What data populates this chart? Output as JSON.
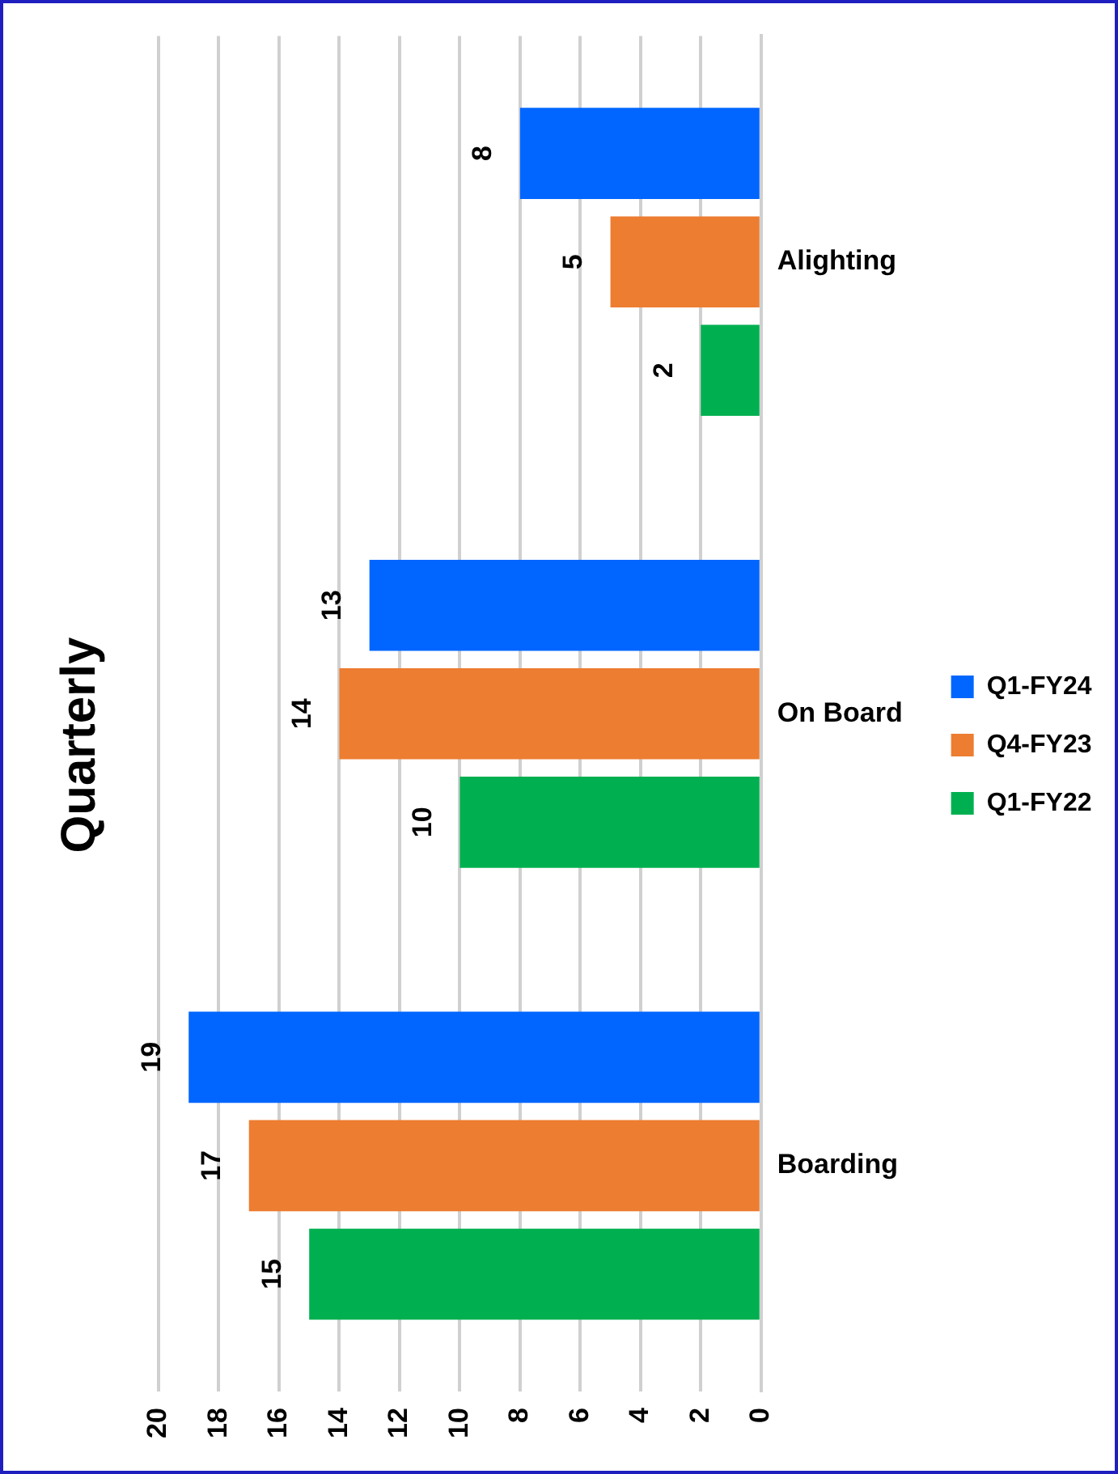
{
  "chart_data": {
    "type": "bar",
    "orientation": "horizontal",
    "title": "Quarterly",
    "categories": [
      "Alighting",
      "On Board",
      "Boarding"
    ],
    "series": [
      {
        "name": "Q1-FY24",
        "color": "#0066ff",
        "values": [
          8,
          13,
          19
        ]
      },
      {
        "name": "Q4-FY23",
        "color": "#ed7d31",
        "values": [
          5,
          14,
          17
        ]
      },
      {
        "name": "Q1-FY22",
        "color": "#00b050",
        "values": [
          2,
          10,
          15
        ]
      }
    ],
    "xlim": [
      20,
      0
    ],
    "xticks": [
      0,
      2,
      4,
      6,
      8,
      10,
      12,
      14,
      16,
      18,
      20
    ],
    "grid": "x",
    "legend": "right",
    "data_labels": true
  }
}
